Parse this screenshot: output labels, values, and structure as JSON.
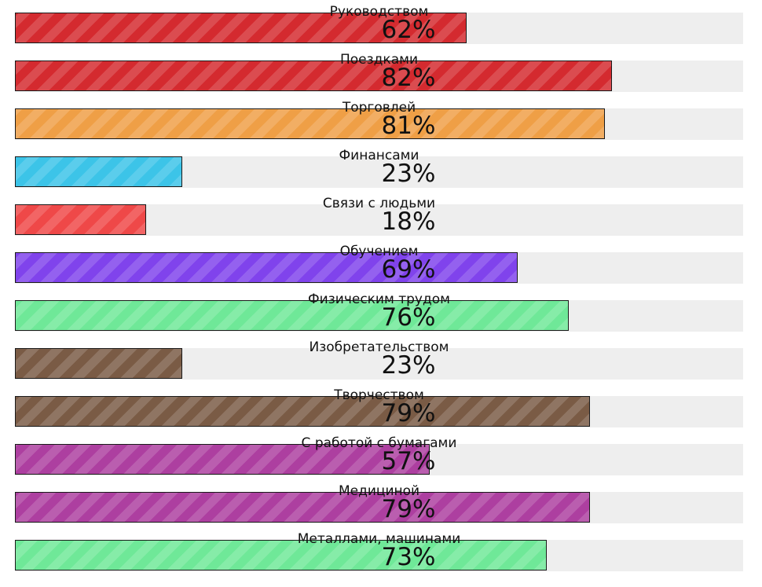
{
  "chart_data": {
    "type": "bar",
    "orientation": "horizontal",
    "categories": [
      "Руководством",
      "Поездками",
      "Торговлей",
      "Финансами",
      "Связи с людьми",
      "Обучением",
      "Физическим трудом",
      "Изобретательством",
      "Творчеством",
      "С работой с бумагами",
      "Медициной",
      "Металлами, машинами"
    ],
    "values": [
      62,
      82,
      81,
      23,
      18,
      69,
      76,
      23,
      79,
      57,
      79,
      73
    ],
    "value_labels": [
      "62%",
      "82%",
      "81%",
      "23%",
      "18%",
      "69%",
      "76%",
      "23%",
      "79%",
      "57%",
      "79%",
      "73%"
    ],
    "colors": [
      "#d42a2f",
      "#d42a2f",
      "#ef9f46",
      "#3cc4e8",
      "#ef4848",
      "#8043ec",
      "#6fe898",
      "#7a5b45",
      "#7a5b45",
      "#ad3fa0",
      "#ad3fa0",
      "#6fe898"
    ],
    "xlim": [
      0,
      100
    ],
    "title": "",
    "xlabel": "",
    "ylabel": ""
  }
}
